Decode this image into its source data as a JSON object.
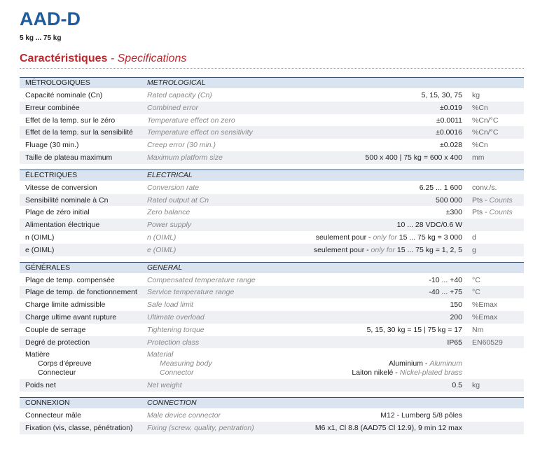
{
  "title": "AAD-D",
  "subtitle": "5 kg ... 75 kg",
  "heading": {
    "fr": "Caractéristiques",
    "en": "- Specifications"
  },
  "sections": [
    {
      "fr": "MÉTROLOGIQUES",
      "en": "METROLOGICAL",
      "rows": [
        {
          "fr": "Capacité nominale (Cn)",
          "en": "Rated capacity (Cn)",
          "value": "5, 15, 30, 75",
          "unit": "kg"
        },
        {
          "fr": "Erreur combinée",
          "en": "Combined error",
          "value": "±0.019",
          "unit": "%Cn"
        },
        {
          "fr": "Effet de la temp. sur le zéro",
          "en": "Temperature effect on zero",
          "value": "±0.0011",
          "unit": "%Cn/°C"
        },
        {
          "fr": "Effet de la temp. sur la sensibilité",
          "en": "Temperature effect on sensitivity",
          "value": "±0.0016",
          "unit": "%Cn/°C"
        },
        {
          "fr": "Fluage (30 min.)",
          "en": "Creep error (30 min.)",
          "value": "±0.028",
          "unit": "%Cn"
        },
        {
          "fr": "Taille de plateau maximum",
          "en": "Maximum platform size",
          "value": "500 x 400 | 75 kg = 600 x 400",
          "unit": "mm"
        }
      ]
    },
    {
      "fr": "ÉLECTRIQUES",
      "en": "ELECTRICAL",
      "rows": [
        {
          "fr": "Vitesse de conversion",
          "en": "Conversion rate",
          "value": "6.25 ... 1 600",
          "unit": "conv./s."
        },
        {
          "fr": "Sensibilité nominale à Cn",
          "en": "Rated output at Cn",
          "value": "500 000",
          "unit": [
            "Pts - ",
            "Counts"
          ]
        },
        {
          "fr": "Plage de zéro initial",
          "en": "Zero balance",
          "value": "±300",
          "unit": [
            "Pts - ",
            "Counts"
          ]
        },
        {
          "fr": "Alimentation électrique",
          "en": "Power supply",
          "value": "10 ... 28 VDC/0.6 W",
          "unit": ""
        },
        {
          "fr": "n (OIML)",
          "en": "n (OIML)",
          "value": [
            "seulement pour - ",
            "only for",
            " 15 ... 75 kg = 3 000"
          ],
          "unit": "d"
        },
        {
          "fr": "e (OIML)",
          "en": "e (OIML)",
          "value": [
            "seulement pour - ",
            "only for",
            " 15 ... 75 kg = 1, 2, 5"
          ],
          "unit": "g"
        }
      ]
    },
    {
      "fr": "GÉNÉRALES",
      "en": "GENERAL",
      "rows": [
        {
          "fr": "Plage de temp. compensée",
          "en": "Compensated temperature range",
          "value": "-10 ... +40",
          "unit": "°C"
        },
        {
          "fr": "Plage de temp. de fonctionnement",
          "en": "Service temperature range",
          "value": "-40 ... +75",
          "unit": "°C"
        },
        {
          "fr": "Charge limite admissible",
          "en": "Safe load limit",
          "value": "150",
          "unit": "%Emax"
        },
        {
          "fr": "Charge ultime avant rupture",
          "en": "Ultimate overload",
          "value": "200",
          "unit": "%Emax"
        },
        {
          "fr": "Couple de serrage",
          "en": "Tightening torque",
          "value": "5, 15, 30 kg = 15 | 75 kg = 17",
          "unit": "Nm"
        },
        {
          "fr": "Degré de protection",
          "en": "Protection class",
          "value": "IP65",
          "unit": "EN60529"
        },
        {
          "fr": "Matière",
          "en": "Material",
          "sub": [
            {
              "fr": "Corps d'épreuve",
              "en": "Measuring body",
              "value": [
                "Aluminium - ",
                "Aluminum"
              ]
            },
            {
              "fr": "Connecteur",
              "en": "Connector",
              "value": [
                "Laiton nikelé - ",
                "Nickel-plated brass"
              ]
            }
          ]
        },
        {
          "fr": "Poids net",
          "en": "Net weight",
          "value": "0.5",
          "unit": "kg"
        }
      ]
    },
    {
      "fr": "CONNEXION",
      "en": "CONNECTION",
      "rows": [
        {
          "fr": "Connecteur mâle",
          "en": "Male device connector",
          "value": "M12 - Lumberg 5/8 pôles",
          "unit": ""
        },
        {
          "fr": "Fixation (vis, classe, pénétration)",
          "en": "Fixing (screw, quality, pentration)",
          "value": "M6 x1, Cl 8.8 (AAD75 Cl 12.9), 9 min 12 max",
          "unit": ""
        }
      ]
    }
  ]
}
